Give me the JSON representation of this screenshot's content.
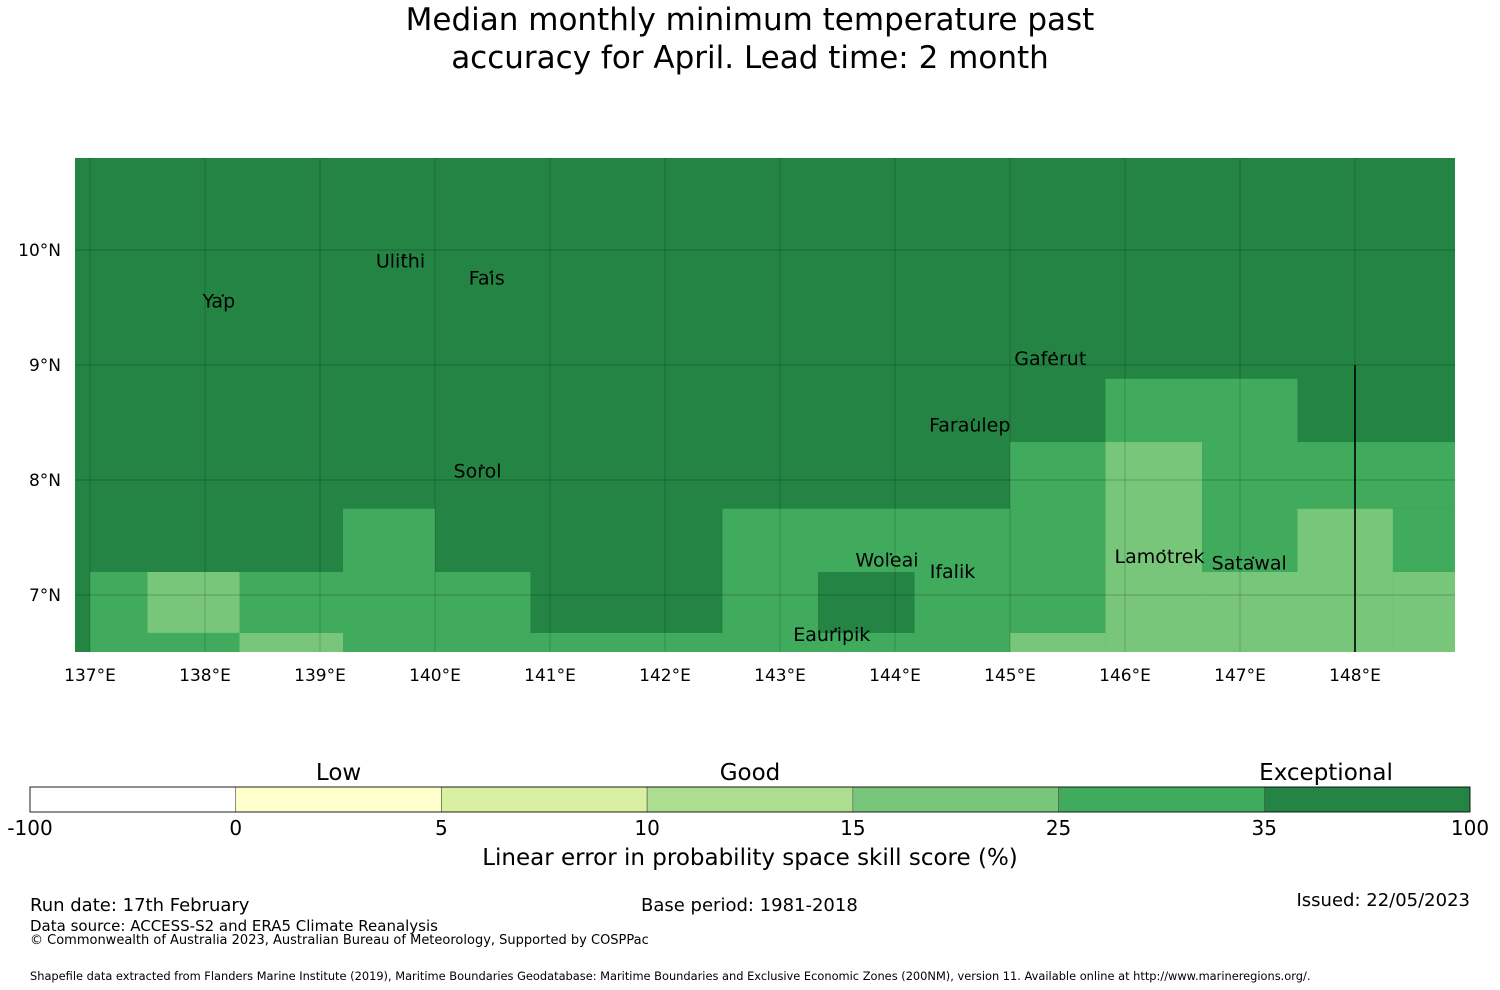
{
  "title": {
    "line1": "Median monthly minimum temperature past",
    "line2": "accuracy for April. Lead time: 2 month"
  },
  "map": {
    "lon_range": [
      137,
      149
    ],
    "lat_range": [
      6.5,
      10.8
    ],
    "x_ticks": [
      {
        "lon": 137,
        "label": "137°E"
      },
      {
        "lon": 138,
        "label": "138°E"
      },
      {
        "lon": 139,
        "label": "139°E"
      },
      {
        "lon": 140,
        "label": "140°E"
      },
      {
        "lon": 141,
        "label": "141°E"
      },
      {
        "lon": 142,
        "label": "142°E"
      },
      {
        "lon": 143,
        "label": "143°E"
      },
      {
        "lon": 144,
        "label": "144°E"
      },
      {
        "lon": 145,
        "label": "145°E"
      },
      {
        "lon": 146,
        "label": "146°E"
      },
      {
        "lon": 147,
        "label": "147°E"
      },
      {
        "lon": 148,
        "label": "148°E"
      }
    ],
    "y_ticks": [
      {
        "lat": 10,
        "label": "10°N"
      },
      {
        "lat": 9,
        "label": "9°N"
      },
      {
        "lat": 8,
        "label": "8°N"
      },
      {
        "lat": 7,
        "label": "7°N"
      }
    ],
    "background_category": "exceptional",
    "cells": [
      {
        "lon": [
          137.0,
          137.5
        ],
        "lat": [
          6.5,
          7.2
        ],
        "cat": "25-35"
      },
      {
        "lon": [
          137.5,
          138.3
        ],
        "lat": [
          6.67,
          7.2
        ],
        "cat": "15-25"
      },
      {
        "lon": [
          138.3,
          139.2
        ],
        "lat": [
          6.67,
          7.2
        ],
        "cat": "25-35"
      },
      {
        "lon": [
          137.5,
          138.3
        ],
        "lat": [
          6.5,
          6.67
        ],
        "cat": "25-35"
      },
      {
        "lon": [
          138.3,
          139.2
        ],
        "lat": [
          6.5,
          6.67
        ],
        "cat": "15-25"
      },
      {
        "lon": [
          139.2,
          140.0
        ],
        "lat": [
          6.5,
          7.75
        ],
        "cat": "25-35"
      },
      {
        "lon": [
          140.0,
          140.83
        ],
        "lat": [
          6.5,
          7.2
        ],
        "cat": "25-35"
      },
      {
        "lon": [
          140.83,
          142.5
        ],
        "lat": [
          6.5,
          6.67
        ],
        "cat": "25-35"
      },
      {
        "lon": [
          142.5,
          145.0
        ],
        "lat": [
          6.5,
          7.75
        ],
        "cat": "25-35"
      },
      {
        "lon": [
          143.33,
          144.17
        ],
        "lat": [
          6.67,
          7.2
        ],
        "cat": "exceptional"
      },
      {
        "lon": [
          145.0,
          145.83
        ],
        "lat": [
          6.67,
          8.33
        ],
        "cat": "25-35"
      },
      {
        "lon": [
          145.0,
          145.83
        ],
        "lat": [
          6.5,
          6.67
        ],
        "cat": "15-25"
      },
      {
        "lon": [
          145.83,
          147.5
        ],
        "lat": [
          8.33,
          8.88
        ],
        "cat": "25-35"
      },
      {
        "lon": [
          145.83,
          146.67
        ],
        "lat": [
          6.5,
          8.33
        ],
        "cat": "15-25"
      },
      {
        "lon": [
          146.67,
          147.5
        ],
        "lat": [
          7.2,
          8.33
        ],
        "cat": "25-35"
      },
      {
        "lon": [
          146.67,
          147.5
        ],
        "lat": [
          6.5,
          7.2
        ],
        "cat": "15-25"
      },
      {
        "lon": [
          147.5,
          149.0
        ],
        "lat": [
          7.75,
          8.33
        ],
        "cat": "25-35"
      },
      {
        "lon": [
          147.5,
          148.33
        ],
        "lat": [
          6.5,
          7.75
        ],
        "cat": "15-25"
      },
      {
        "lon": [
          148.33,
          149.0
        ],
        "lat": [
          7.2,
          7.75
        ],
        "cat": "25-35"
      },
      {
        "lon": [
          148.33,
          149.0
        ],
        "lat": [
          6.5,
          7.2
        ],
        "cat": "15-25"
      }
    ],
    "boundary_line": {
      "lon": 148.0,
      "lat": [
        6.5,
        9.0
      ]
    },
    "islands": [
      {
        "name": "Yap",
        "lon": 138.12,
        "lat": 9.5
      },
      {
        "name": "Ulithi",
        "lon": 139.7,
        "lat": 9.85
      },
      {
        "name": "Fais",
        "lon": 140.45,
        "lat": 9.7
      },
      {
        "name": "Gaferut",
        "lon": 145.35,
        "lat": 9.0
      },
      {
        "name": "Faraulep",
        "lon": 144.65,
        "lat": 8.42
      },
      {
        "name": "Sorol",
        "lon": 140.37,
        "lat": 8.02
      },
      {
        "name": "Woleai",
        "lon": 143.93,
        "lat": 7.25
      },
      {
        "name": "Ifalik",
        "lon": 144.5,
        "lat": 7.15
      },
      {
        "name": "Lamotrek",
        "lon": 146.3,
        "lat": 7.28
      },
      {
        "name": "Satawal",
        "lon": 147.08,
        "lat": 7.22
      },
      {
        "name": "Eauripik",
        "lon": 143.45,
        "lat": 6.6
      }
    ]
  },
  "colorbar": {
    "categories": [
      {
        "label": "Low",
        "at_bin": 1.5
      },
      {
        "label": "Good",
        "at_bin": 3.5
      },
      {
        "label": "Exceptional",
        "at_bin": 6.3
      }
    ],
    "bins": [
      {
        "key": "-100-0",
        "color": "#ffffff"
      },
      {
        "key": "0-5",
        "color": "#ffffcc"
      },
      {
        "key": "5-10",
        "color": "#d9f0a3"
      },
      {
        "key": "10-15",
        "color": "#addd8e"
      },
      {
        "key": "15-25",
        "color": "#78c679"
      },
      {
        "key": "25-35",
        "color": "#41ab5d"
      },
      {
        "key": "exceptional",
        "color": "#238443"
      }
    ],
    "ticks": [
      "-100",
      "0",
      "5",
      "10",
      "15",
      "25",
      "35",
      "100"
    ],
    "label": "Linear error in probability space skill score (%)"
  },
  "footer": {
    "run_date": "Run date: 17th February",
    "base_period": "Base period: 1981-2018",
    "issued": "Issued: 22/05/2023",
    "data_source": "Data source: ACCESS-S2 and ERA5 Climate Reanalysis",
    "copyright": "© Commonwealth of Australia 2023, Australian Bureau of Meteorology, Supported by COSPPac",
    "shapefile": "Shapefile data extracted from Flanders Marine Institute (2019), Maritime Boundaries Geodatabase: Maritime Boundaries and Exclusive Economic Zones (200NM), version 11. Available online at http://www.marineregions.org/."
  }
}
